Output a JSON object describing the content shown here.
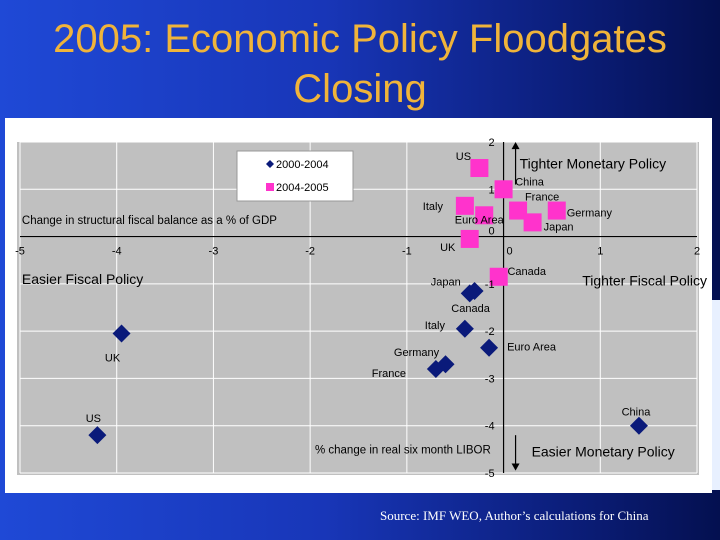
{
  "slide": {
    "title_line1": "2005: Economic Policy Floodgates",
    "title_line2": "Closing",
    "source": "Source: IMF WEO, Author’s calculations for China"
  },
  "colors": {
    "series1": "#0a1a7a",
    "series2": "#ff33cc",
    "plot_bg": "#c0c0c0",
    "grid": "#ffffff",
    "title": "#f0b43a"
  },
  "chart_data": {
    "type": "scatter",
    "xlim": [
      -5,
      2
    ],
    "ylim": [
      -5,
      2
    ],
    "x_ticks": [
      -5,
      -4,
      -3,
      -2,
      -1,
      0,
      1,
      2
    ],
    "y_ticks": [
      -5,
      -4,
      -3,
      -2,
      -1,
      0,
      1,
      2
    ],
    "grid": true,
    "legend_position": "top-left",
    "xlabel": "% change in real six month LIBOR",
    "ylabel": "Change in structural fiscal balance as a % of GDP",
    "annotations": {
      "tighter_monetary": "Tighter Monetary Policy",
      "easier_monetary": "Easier Monetary Policy",
      "easier_fiscal": "Easier Fiscal Policy",
      "tighter_fiscal": "Tighter Fiscal Policy"
    },
    "series": [
      {
        "name": "2000-2004",
        "marker": "diamond",
        "points": [
          {
            "label": "US",
            "x": -4.2,
            "y": -4.2
          },
          {
            "label": "UK",
            "x": -3.95,
            "y": -2.05
          },
          {
            "label": "Japan",
            "x": -0.35,
            "y": -1.2
          },
          {
            "label": "Canada",
            "x": -0.3,
            "y": -1.15
          },
          {
            "label": "Italy",
            "x": -0.4,
            "y": -1.95
          },
          {
            "label": "Germany",
            "x": -0.6,
            "y": -2.7
          },
          {
            "label": "France",
            "x": -0.7,
            "y": -2.8
          },
          {
            "label": "Euro Area",
            "x": -0.15,
            "y": -2.35
          },
          {
            "label": "China",
            "x": 1.4,
            "y": -4.0
          }
        ]
      },
      {
        "name": "2004-2005",
        "marker": "square",
        "points": [
          {
            "label": "US",
            "x": -0.25,
            "y": 1.45
          },
          {
            "label": "China",
            "x": 0.0,
            "y": 1.0
          },
          {
            "label": "France",
            "x": 0.15,
            "y": 0.55
          },
          {
            "label": "Germany",
            "x": 0.55,
            "y": 0.55
          },
          {
            "label": "Japan",
            "x": 0.3,
            "y": 0.3
          },
          {
            "label": "Italy",
            "x": -0.4,
            "y": 0.65
          },
          {
            "label": "Euro Area",
            "x": -0.2,
            "y": 0.45
          },
          {
            "label": "UK",
            "x": -0.35,
            "y": -0.05
          },
          {
            "label": "Canada",
            "x": -0.05,
            "y": -0.85
          }
        ]
      }
    ]
  }
}
